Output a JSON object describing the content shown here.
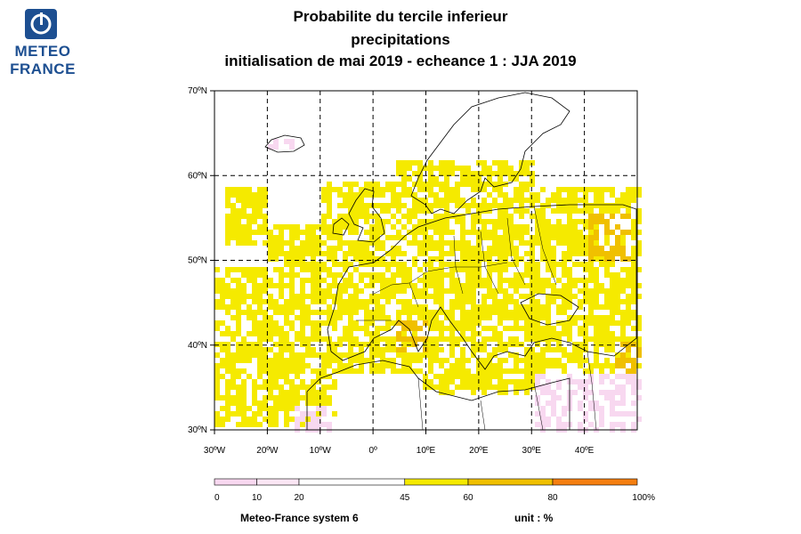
{
  "logo": {
    "line1": "METEO",
    "line2": "FRANCE"
  },
  "title": {
    "line1": "Probabilite du tercile inferieur",
    "line2": "precipitations",
    "line3": "initialisation de mai 2019  -  echeance 1 : JJA 2019"
  },
  "map": {
    "lat_range": [
      30,
      70
    ],
    "lon_range": [
      -30,
      50
    ],
    "lat_ticks": [
      "30ºN",
      "40ºN",
      "50ºN",
      "60ºN",
      "70ºN"
    ],
    "lon_ticks": [
      "30ºW",
      "20ºW",
      "10ºW",
      "0º",
      "10ºE",
      "20ºE",
      "30ºE",
      "40ºE"
    ]
  },
  "colorbar": {
    "labels": [
      "0",
      "10",
      "20",
      "45",
      "60",
      "80",
      "100%"
    ],
    "bins": [
      {
        "from": 0,
        "to": 10,
        "color": "#f8d8f0"
      },
      {
        "from": 10,
        "to": 20,
        "color": "#fbe6f4"
      },
      {
        "from": 20,
        "to": 45,
        "color": "#ffffff"
      },
      {
        "from": 45,
        "to": 60,
        "color": "#f5ea00"
      },
      {
        "from": 60,
        "to": 80,
        "color": "#f0c000"
      },
      {
        "from": 80,
        "to": 100,
        "color": "#f57f10"
      }
    ]
  },
  "footer": {
    "model": "Meteo-France system 6",
    "unit": "unit : %"
  }
}
